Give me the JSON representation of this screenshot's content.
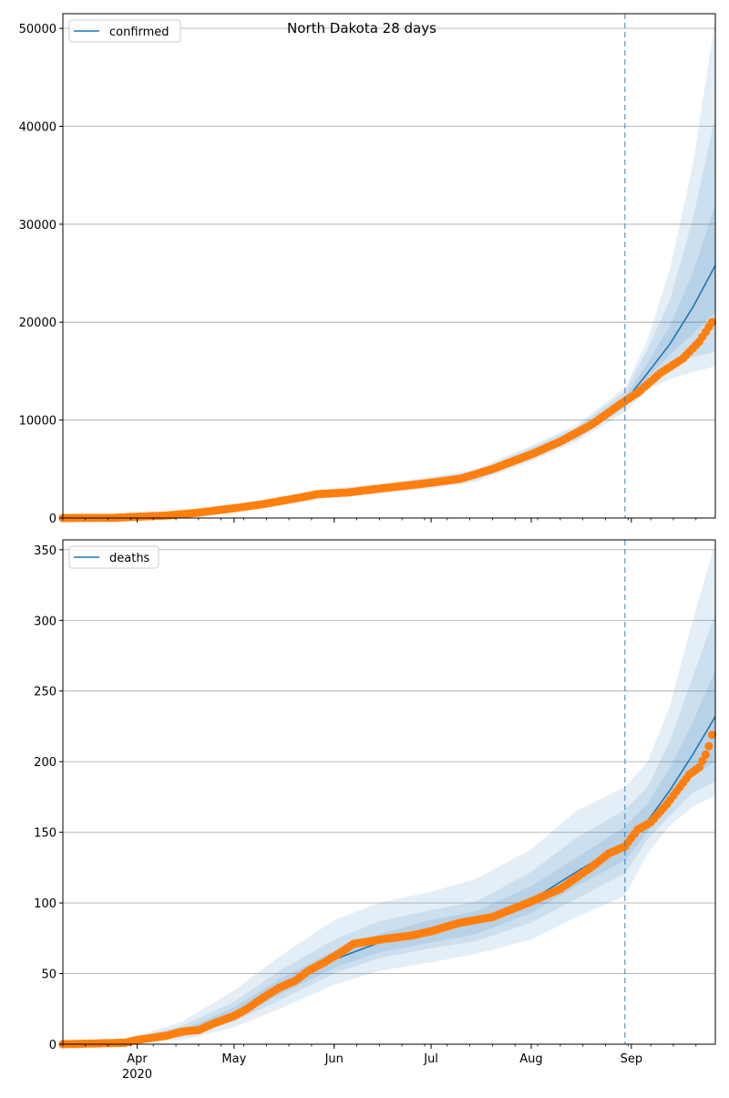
{
  "title": "North Dakota 28 days",
  "colors": {
    "line": "#1f77b4",
    "points": "#ff7f0e",
    "band": "#1f77b4",
    "grid": "#b0b0b0",
    "vline": "#1f77b4"
  },
  "x_axis": {
    "start_date": "2020-03-09",
    "end_date": "2020-09-27",
    "ticks": [
      {
        "date": "2020-04-01",
        "label": "Apr",
        "sublabel": "2020"
      },
      {
        "date": "2020-05-01",
        "label": "May",
        "sublabel": ""
      },
      {
        "date": "2020-06-01",
        "label": "Jun",
        "sublabel": ""
      },
      {
        "date": "2020-07-01",
        "label": "Jul",
        "sublabel": ""
      },
      {
        "date": "2020-08-01",
        "label": "Aug",
        "sublabel": ""
      },
      {
        "date": "2020-09-01",
        "label": "Sep",
        "sublabel": ""
      }
    ]
  },
  "chart_data": [
    {
      "type": "line",
      "legend": "confirmed",
      "legend_position": "upper-left",
      "grid": true,
      "forecast_start": "2020-08-30",
      "ylim": [
        0,
        51500
      ],
      "yticks": [
        0,
        10000,
        20000,
        30000,
        40000,
        50000
      ],
      "fit_line": [
        {
          "x": "2020-03-09",
          "y": 0
        },
        {
          "x": "2020-03-20",
          "y": 30
        },
        {
          "x": "2020-04-01",
          "y": 150
        },
        {
          "x": "2020-04-15",
          "y": 330
        },
        {
          "x": "2020-05-01",
          "y": 1000
        },
        {
          "x": "2020-05-15",
          "y": 1650
        },
        {
          "x": "2020-06-01",
          "y": 2550
        },
        {
          "x": "2020-06-15",
          "y": 3000
        },
        {
          "x": "2020-07-01",
          "y": 3600
        },
        {
          "x": "2020-07-15",
          "y": 4300
        },
        {
          "x": "2020-08-01",
          "y": 6600
        },
        {
          "x": "2020-08-15",
          "y": 8600
        },
        {
          "x": "2020-08-30",
          "y": 11900
        },
        {
          "x": "2020-09-06",
          "y": 14800
        },
        {
          "x": "2020-09-13",
          "y": 17800
        },
        {
          "x": "2020-09-20",
          "y": 21500
        },
        {
          "x": "2020-09-27",
          "y": 25800
        }
      ],
      "bands": [
        {
          "lower": [
            0,
            0,
            80,
            200,
            700,
            1300,
            2100,
            2500,
            3000,
            3700,
            5800,
            7800,
            10800,
            13100,
            14200,
            14900,
            15500
          ],
          "upper": [
            0,
            60,
            250,
            550,
            1300,
            2050,
            3050,
            3500,
            4200,
            5000,
            7400,
            9500,
            13300,
            18200,
            25500,
            36000,
            51000
          ]
        },
        {
          "lower": [
            0,
            0,
            100,
            250,
            800,
            1400,
            2250,
            2650,
            3200,
            3900,
            6000,
            8050,
            11200,
            13800,
            15500,
            16400,
            17000
          ],
          "upper": [
            0,
            50,
            220,
            480,
            1200,
            1950,
            2900,
            3350,
            4050,
            4800,
            7200,
            9250,
            12900,
            17200,
            22300,
            30500,
            41000
          ]
        },
        {
          "lower": [
            0,
            5,
            120,
            280,
            880,
            1500,
            2380,
            2780,
            3350,
            4050,
            6200,
            8250,
            11500,
            14300,
            16700,
            18800,
            21000
          ],
          "upper": [
            0,
            40,
            190,
            420,
            1110,
            1820,
            2730,
            3200,
            3850,
            4550,
            6950,
            8950,
            12400,
            15800,
            19700,
            25000,
            32000
          ]
        }
      ],
      "observed": [
        {
          "x": "2020-03-09",
          "y": 0
        },
        {
          "x": "2020-03-25",
          "y": 20
        },
        {
          "x": "2020-04-01",
          "y": 130
        },
        {
          "x": "2020-04-10",
          "y": 250
        },
        {
          "x": "2020-04-20",
          "y": 550
        },
        {
          "x": "2020-05-01",
          "y": 1000
        },
        {
          "x": "2020-05-10",
          "y": 1420
        },
        {
          "x": "2020-05-20",
          "y": 2000
        },
        {
          "x": "2020-05-27",
          "y": 2450
        },
        {
          "x": "2020-06-05",
          "y": 2600
        },
        {
          "x": "2020-06-15",
          "y": 3000
        },
        {
          "x": "2020-07-01",
          "y": 3600
        },
        {
          "x": "2020-07-10",
          "y": 4000
        },
        {
          "x": "2020-07-20",
          "y": 5000
        },
        {
          "x": "2020-08-01",
          "y": 6500
        },
        {
          "x": "2020-08-10",
          "y": 7800
        },
        {
          "x": "2020-08-20",
          "y": 9600
        },
        {
          "x": "2020-08-28",
          "y": 11500
        },
        {
          "x": "2020-09-03",
          "y": 12800
        },
        {
          "x": "2020-09-10",
          "y": 14800
        },
        {
          "x": "2020-09-17",
          "y": 16300
        },
        {
          "x": "2020-09-22",
          "y": 18000
        },
        {
          "x": "2020-09-26",
          "y": 20000
        }
      ]
    },
    {
      "type": "line",
      "legend": "deaths",
      "legend_position": "upper-left",
      "grid": true,
      "forecast_start": "2020-08-30",
      "ylim": [
        0,
        357
      ],
      "yticks": [
        0,
        50,
        100,
        150,
        200,
        250,
        300,
        350
      ],
      "fit_line": [
        {
          "x": "2020-03-09",
          "y": 0
        },
        {
          "x": "2020-03-25",
          "y": 1
        },
        {
          "x": "2020-04-01",
          "y": 3
        },
        {
          "x": "2020-04-15",
          "y": 8
        },
        {
          "x": "2020-05-01",
          "y": 22
        },
        {
          "x": "2020-05-15",
          "y": 40
        },
        {
          "x": "2020-06-01",
          "y": 60
        },
        {
          "x": "2020-06-15",
          "y": 72
        },
        {
          "x": "2020-07-01",
          "y": 80
        },
        {
          "x": "2020-07-15",
          "y": 86
        },
        {
          "x": "2020-08-01",
          "y": 102
        },
        {
          "x": "2020-08-15",
          "y": 122
        },
        {
          "x": "2020-08-30",
          "y": 142
        },
        {
          "x": "2020-09-06",
          "y": 158
        },
        {
          "x": "2020-09-13",
          "y": 180
        },
        {
          "x": "2020-09-20",
          "y": 205
        },
        {
          "x": "2020-09-27",
          "y": 232
        }
      ],
      "bands": [
        {
          "lower": [
            0,
            0,
            1,
            3,
            12,
            25,
            42,
            52,
            58,
            64,
            74,
            90,
            105,
            135,
            155,
            168,
            176
          ],
          "upper": [
            0,
            2,
            6,
            16,
            38,
            62,
            88,
            100,
            108,
            117,
            138,
            165,
            182,
            200,
            240,
            300,
            355
          ]
        },
        {
          "lower": [
            0,
            0,
            2,
            5,
            16,
            31,
            50,
            61,
            68,
            73,
            86,
            103,
            121,
            145,
            162,
            178,
            186
          ],
          "upper": [
            0,
            2,
            5,
            13,
            30,
            52,
            74,
            87,
            95,
            101,
            122,
            146,
            166,
            182,
            215,
            260,
            305
          ]
        },
        {
          "lower": [
            0,
            0,
            2,
            6,
            18,
            35,
            54,
            65,
            72,
            78,
            93,
            112,
            130,
            150,
            170,
            190,
            200
          ],
          "upper": [
            0,
            1,
            4,
            10,
            26,
            46,
            66,
            78,
            88,
            94,
            112,
            132,
            154,
            170,
            196,
            228,
            265
          ]
        }
      ],
      "observed": [
        {
          "x": "2020-03-09",
          "y": 0
        },
        {
          "x": "2020-03-28",
          "y": 1
        },
        {
          "x": "2020-04-01",
          "y": 3
        },
        {
          "x": "2020-04-10",
          "y": 6
        },
        {
          "x": "2020-04-15",
          "y": 9
        },
        {
          "x": "2020-04-20",
          "y": 10
        },
        {
          "x": "2020-04-25",
          "y": 15
        },
        {
          "x": "2020-05-01",
          "y": 20
        },
        {
          "x": "2020-05-05",
          "y": 25
        },
        {
          "x": "2020-05-10",
          "y": 33
        },
        {
          "x": "2020-05-15",
          "y": 40
        },
        {
          "x": "2020-05-20",
          "y": 45
        },
        {
          "x": "2020-05-24",
          "y": 52
        },
        {
          "x": "2020-05-29",
          "y": 58
        },
        {
          "x": "2020-06-03",
          "y": 65
        },
        {
          "x": "2020-06-07",
          "y": 71
        },
        {
          "x": "2020-06-15",
          "y": 74
        },
        {
          "x": "2020-06-25",
          "y": 77
        },
        {
          "x": "2020-07-01",
          "y": 80
        },
        {
          "x": "2020-07-10",
          "y": 86
        },
        {
          "x": "2020-07-20",
          "y": 90
        },
        {
          "x": "2020-08-01",
          "y": 101
        },
        {
          "x": "2020-08-10",
          "y": 110
        },
        {
          "x": "2020-08-15",
          "y": 118
        },
        {
          "x": "2020-08-20",
          "y": 126
        },
        {
          "x": "2020-08-25",
          "y": 135
        },
        {
          "x": "2020-08-30",
          "y": 140
        },
        {
          "x": "2020-09-03",
          "y": 152
        },
        {
          "x": "2020-09-07",
          "y": 157
        },
        {
          "x": "2020-09-12",
          "y": 170
        },
        {
          "x": "2020-09-16",
          "y": 182
        },
        {
          "x": "2020-09-19",
          "y": 191
        },
        {
          "x": "2020-09-22",
          "y": 196
        },
        {
          "x": "2020-09-24",
          "y": 205
        },
        {
          "x": "2020-09-25",
          "y": 211
        },
        {
          "x": "2020-09-26",
          "y": 219
        }
      ]
    }
  ]
}
